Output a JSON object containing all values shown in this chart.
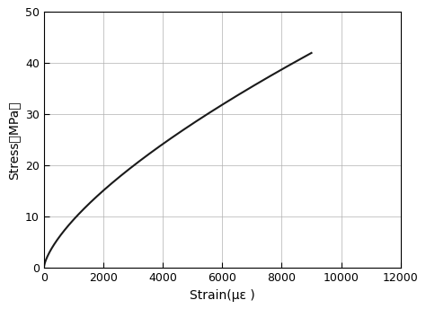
{
  "title": "",
  "xlabel": "Strain(με )",
  "ylabel": "Stress（MPa）",
  "ylabel_ascii": "Stress （MPa）",
  "xlim": [
    0,
    12000
  ],
  "ylim": [
    0,
    50
  ],
  "xticks": [
    0,
    2000,
    4000,
    6000,
    8000,
    10000,
    12000
  ],
  "yticks": [
    0,
    10,
    20,
    30,
    40,
    50
  ],
  "curve_end_x": 9000,
  "curve_end_y": 42,
  "line_color": "#1a1a1a",
  "line_width": 1.5,
  "grid_color": "#b0b0b0",
  "grid_linewidth": 0.5,
  "background_color": "#ffffff",
  "font_size_label": 10,
  "font_size_tick": 9,
  "power_exponent": 0.68
}
